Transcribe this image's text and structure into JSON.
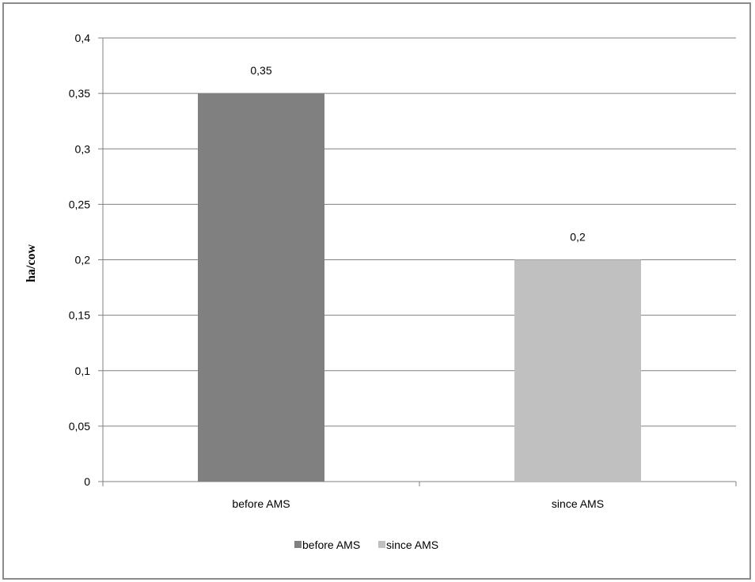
{
  "chart_data": {
    "type": "bar",
    "categories": [
      "before AMS",
      "since AMS"
    ],
    "values": [
      0.35,
      0.2
    ],
    "value_labels": [
      "0,35",
      "0,2"
    ],
    "colors": [
      "#808080",
      "#c0c0c0"
    ],
    "ylabel": "ha/cow",
    "ylim": [
      0,
      0.4
    ],
    "yticks": [
      0,
      0.05,
      0.1,
      0.15,
      0.2,
      0.25,
      0.3,
      0.35,
      0.4
    ],
    "ytick_labels": [
      "0",
      "0,05",
      "0,1",
      "0,15",
      "0,2",
      "0,25",
      "0,3",
      "0,35",
      "0,4"
    ],
    "grid": true,
    "legend_placement": "bottom",
    "legend": [
      {
        "label": "before AMS",
        "color": "#808080"
      },
      {
        "label": "since AMS",
        "color": "#c0c0c0"
      }
    ]
  }
}
